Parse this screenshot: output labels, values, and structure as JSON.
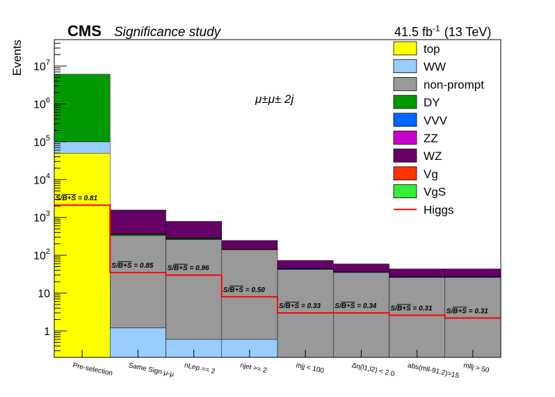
{
  "chart_data": {
    "type": "bar",
    "stacked": true,
    "title": "Significance study",
    "experiment": "CMS",
    "luminosity_label": "41.5 fb",
    "luminosity_exponent": "-1",
    "energy_label": "(13 TeV)",
    "channel_label": "μ±μ± 2j",
    "ylabel": "Events",
    "y_scale": "log",
    "ylim": [
      0.2,
      50000000
    ],
    "y_ticks": [
      {
        "value": 1,
        "label": "1"
      },
      {
        "value": 10,
        "label": "10"
      },
      {
        "value": 100,
        "label": "10",
        "exp": "2"
      },
      {
        "value": 1000,
        "label": "10",
        "exp": "3"
      },
      {
        "value": 10000,
        "label": "10",
        "exp": "4"
      },
      {
        "value": 100000,
        "label": "10",
        "exp": "5"
      },
      {
        "value": 1000000,
        "label": "10",
        "exp": "6"
      },
      {
        "value": 10000000,
        "label": "10",
        "exp": "7"
      }
    ],
    "categories": [
      "Pre-selection",
      "Same Sign μ-μ",
      "nLep == 2",
      "njet >= 2",
      "mjj < 100",
      "Δη(l1,l2) < 2.0",
      "abs(mll-91.2)>15",
      "mllj > 50"
    ],
    "legend_position": "top-right",
    "series": [
      {
        "name": "top",
        "color": "#ffff00",
        "values": [
          50000,
          0.2,
          0,
          0,
          0,
          0,
          0,
          0
        ]
      },
      {
        "name": "WW",
        "color": "#99ccff",
        "values": [
          50000,
          1.0,
          0.6,
          0.6,
          0,
          0,
          0,
          0
        ]
      },
      {
        "name": "non-prompt",
        "color": "#999999",
        "values": [
          0,
          330,
          260,
          140,
          42,
          35,
          26,
          26
        ]
      },
      {
        "name": "DY",
        "color": "#009900",
        "values": [
          6000000,
          25,
          15,
          0,
          0,
          0,
          0,
          0
        ]
      },
      {
        "name": "VVV",
        "color": "#0066ff",
        "values": [
          0,
          5,
          4,
          3,
          2,
          1.5,
          1,
          1
        ]
      },
      {
        "name": "ZZ",
        "color": "#cc00cc",
        "values": [
          0,
          10,
          5,
          2,
          1,
          0.5,
          0.5,
          0.5
        ]
      },
      {
        "name": "WZ",
        "color": "#660066",
        "values": [
          0,
          1200,
          500,
          100,
          28,
          22,
          16,
          16
        ]
      },
      {
        "name": "Vg",
        "color": "#ff3300",
        "values": [
          0,
          0,
          0,
          0,
          0,
          0,
          0,
          0
        ]
      },
      {
        "name": "VgS",
        "color": "#33ee33",
        "values": [
          0,
          0,
          0,
          0,
          0,
          0,
          0,
          0
        ]
      }
    ],
    "higgs": {
      "name": "Higgs",
      "color": "#ff0000",
      "values": [
        2100,
        35,
        30,
        8,
        3,
        3,
        2.6,
        2.2
      ]
    },
    "significance_labels": [
      {
        "prefix": "S/",
        "root": "B+S",
        "value": " = 0.81"
      },
      {
        "prefix": "S/",
        "root": "B+S",
        "value": " = 0.85"
      },
      {
        "prefix": "S/",
        "root": "B+S",
        "value": " = 0.96"
      },
      {
        "prefix": "S/",
        "root": "B+S",
        "value": " = 0.50"
      },
      {
        "prefix": "S/",
        "root": "B+S",
        "value": " = 0.33"
      },
      {
        "prefix": "S/",
        "root": "B+S",
        "value": " = 0.34"
      },
      {
        "prefix": "S/",
        "root": "B+S",
        "value": " = 0.31"
      },
      {
        "prefix": "S/",
        "root": "B+S",
        "value": " = 0.31"
      }
    ]
  }
}
